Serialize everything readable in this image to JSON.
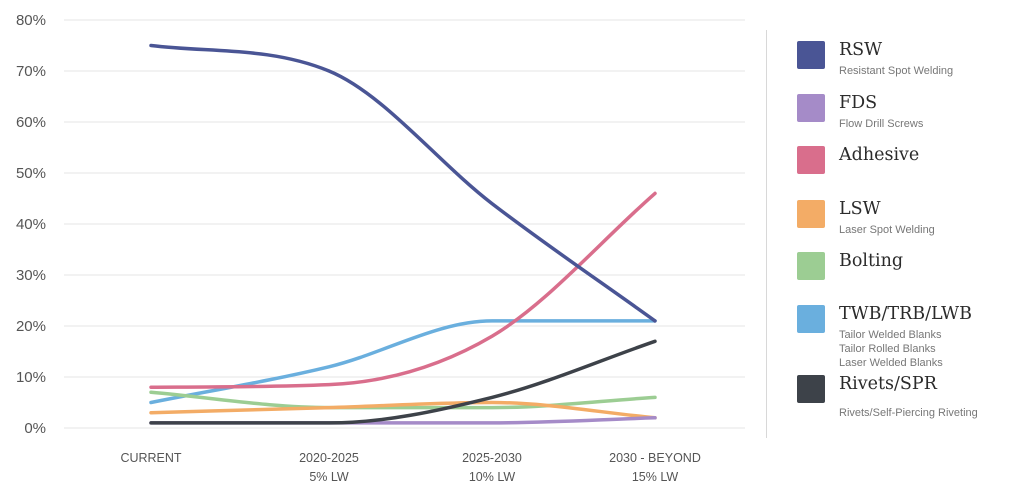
{
  "chart_data": {
    "type": "line",
    "title": "",
    "xlabel": "",
    "ylabel": "",
    "categories": [
      {
        "label": "CURRENT",
        "sublabel": ""
      },
      {
        "label": "2020-2025",
        "sublabel": "5% LW"
      },
      {
        "label": "2025-2030",
        "sublabel": "10% LW"
      },
      {
        "label": "2030 - BEYOND",
        "sublabel": "15% LW"
      }
    ],
    "y_ticks": [
      "0%",
      "10%",
      "20%",
      "30%",
      "40%",
      "50%",
      "60%",
      "70%",
      "80%"
    ],
    "ylim": [
      0,
      80
    ],
    "grid": true,
    "legend_position": "right",
    "series": [
      {
        "name": "RSW",
        "description": [
          "Resistant Spot Welding"
        ],
        "color": "#4a5595",
        "values": [
          75,
          70,
          44,
          21
        ]
      },
      {
        "name": "FDS",
        "description": [
          "Flow Drill Screws"
        ],
        "color": "#a58bc8",
        "values": [
          1,
          1,
          1,
          2
        ]
      },
      {
        "name": "Adhesive",
        "description": [],
        "color": "#d96e8c",
        "values": [
          8,
          8.5,
          18,
          46
        ]
      },
      {
        "name": "LSW",
        "description": [
          "Laser Spot Welding"
        ],
        "color": "#f3ac66",
        "values": [
          3,
          4,
          5,
          2
        ]
      },
      {
        "name": "Bolting",
        "description": [],
        "color": "#9ccd93",
        "values": [
          7,
          4,
          4,
          6
        ]
      },
      {
        "name": "TWB/TRB/LWB",
        "description": [
          "Tailor Welded Blanks",
          "Tailor Rolled Blanks",
          "Laser Welded Blanks"
        ],
        "color": "#6aafde",
        "values": [
          5,
          12,
          21,
          21
        ]
      },
      {
        "name": "Rivets/SPR",
        "description": [
          "Rivets/Self-Piercing Riveting"
        ],
        "color": "#3d4249",
        "values": [
          1,
          1,
          6,
          17
        ]
      }
    ]
  }
}
